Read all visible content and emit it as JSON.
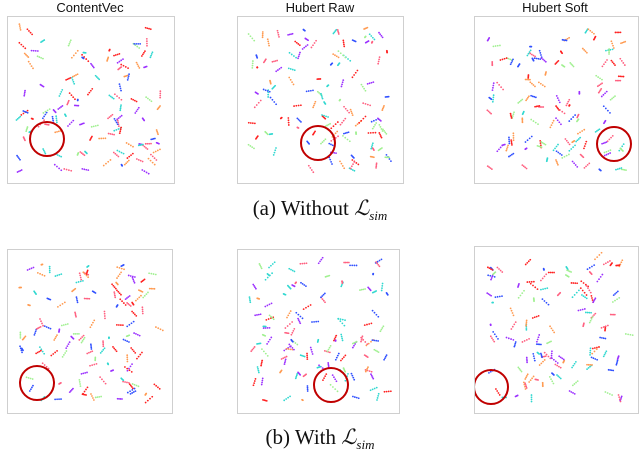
{
  "figure": {
    "column_titles": [
      "ContentVec",
      "Hubert Raw",
      "Hubert Soft"
    ],
    "captions": [
      {
        "prefix": "(a) Without ",
        "symbol": "ℒ",
        "subscript": "sim"
      },
      {
        "prefix": "(b) With ",
        "symbol": "ℒ",
        "subscript": "sim"
      }
    ],
    "point_colors": [
      "#ff2020",
      "#ff9a50",
      "#9b30ff",
      "#30d8d0",
      "#a0f090",
      "#3050ff",
      "#ff6080"
    ],
    "highlight_color": "#c00000",
    "highlight_shape": "circle"
  }
}
